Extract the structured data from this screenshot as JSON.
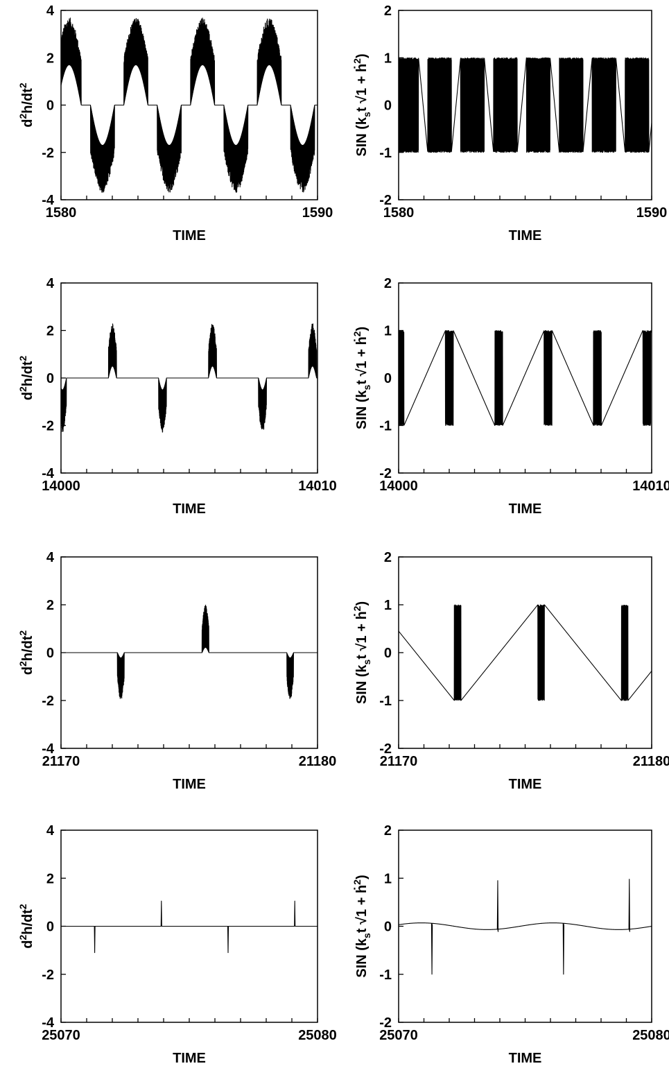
{
  "chart_data": [
    {
      "type": "line",
      "xlabel": "TIME",
      "ylabel_left": "d2h/dt2",
      "ylabel_right": "SIN(kst√(1 + ḣ2))",
      "xlim": [
        1580,
        1590
      ],
      "ylim_left": [
        -4,
        4
      ],
      "ylim_right": [
        -2,
        2
      ],
      "left_signal": {
        "model": "accel",
        "period": 2.6,
        "phase": 0.15,
        "duty": 0.72,
        "fill_amp": 3.7,
        "inner_amp": 1.7,
        "envelope_amp": 0.0
      },
      "right_signal": {
        "model": "sin",
        "period": 2.6,
        "phase": 0.15,
        "duty": 0.72
      }
    },
    {
      "type": "line",
      "xlabel": "TIME",
      "ylabel_left": "d2h/dt2",
      "ylabel_right": "SIN(kst√(1 + ḣ2))",
      "xlim": [
        14000,
        14010
      ],
      "ylim_left": [
        -4,
        4
      ],
      "ylim_right": [
        -2,
        2
      ],
      "left_signal": {
        "model": "accel",
        "period": 3.9,
        "phase": 2.05,
        "duty": 0.16,
        "fill_amp": 2.3,
        "inner_amp": 0.25,
        "envelope_amp": 0.25
      },
      "right_signal": {
        "model": "sin",
        "period": 3.9,
        "phase": 2.05,
        "duty": 0.16
      }
    },
    {
      "type": "line",
      "xlabel": "TIME",
      "ylabel_left": "d2h/dt2",
      "ylabel_right": "SIN(kst√(1 + ḣ2))",
      "xlim": [
        21170,
        21180
      ],
      "ylim_left": [
        -4,
        4
      ],
      "ylim_right": [
        -2,
        2
      ],
      "left_signal": {
        "model": "accel",
        "period": 6.6,
        "phase": 1.1,
        "duty": 0.08,
        "fill_amp": 2.0,
        "inner_amp": 0.1,
        "envelope_amp": 0.12
      },
      "right_signal": {
        "model": "sin",
        "period": 6.6,
        "phase": 1.1,
        "duty": 0.08
      }
    },
    {
      "type": "line",
      "xlabel": "TIME",
      "ylabel_left": "d2h/dt2",
      "ylabel_right": "SIN(kst√(1 + ḣ2))",
      "xlim": [
        25070,
        25080
      ],
      "ylim_left": [
        -4,
        4
      ],
      "ylim_right": [
        -2,
        2
      ],
      "left_signal": {
        "model": "spikes",
        "events": [
          [
            25071.3,
            -1.1
          ],
          [
            25073.9,
            1.05
          ],
          [
            25076.5,
            -1.1
          ],
          [
            25079.1,
            1.05
          ]
        ],
        "baseline": 0
      },
      "right_signal": {
        "model": "wave_spikes",
        "events": [
          [
            25071.3,
            -1.0
          ],
          [
            25073.9,
            0.95
          ],
          [
            25076.5,
            -1.0
          ],
          [
            25079.1,
            0.98
          ]
        ],
        "wave_amp": 0.07,
        "period": 5.2
      }
    }
  ],
  "labels": {
    "xlabel": "TIME",
    "ylabel_left_main": "d",
    "ylabel_left_sup1": "2",
    "ylabel_left_mid": "h/dt",
    "ylabel_left_sup2": "2",
    "ylabel_right_sin": "SIN",
    "ylabel_right_k": "k",
    "ylabel_right_sub": "s",
    "ylabel_right_t": "t",
    "ylabel_right_root": "√",
    "ylabel_right_inner": "1 + ḣ",
    "ylabel_right_sup": "2"
  }
}
